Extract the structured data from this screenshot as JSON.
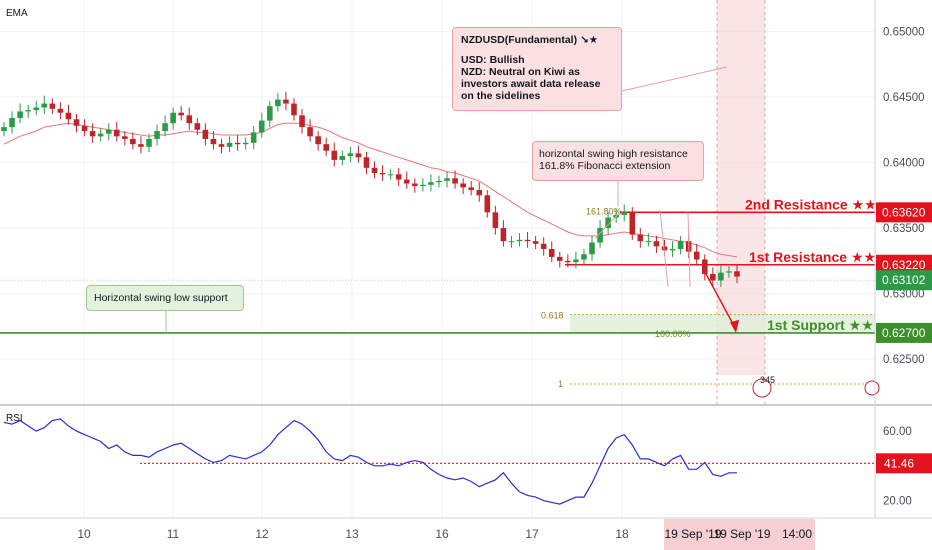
{
  "chart_data": {
    "type": "line",
    "indicator_label": "EMA",
    "rsi_label": "RSI",
    "price_axis": {
      "ticks": [
        "0.65000",
        "0.64500",
        "0.64000",
        "0.63500",
        "0.63000",
        "0.62500"
      ],
      "ylim": [
        0.6215,
        0.6524
      ]
    },
    "rsi_axis": {
      "ticks": [
        "60.00",
        "20.00"
      ],
      "ylim": [
        10,
        75
      ]
    },
    "x_ticks": [
      "10",
      "11",
      "12",
      "13",
      "16",
      "17",
      "18"
    ],
    "x_ticks_highlight": [
      "19 Sep '19",
      "19 Sep '19",
      "14:00"
    ],
    "price_series": [
      0.6427,
      0.6434,
      0.6439,
      0.644,
      0.6442,
      0.6445,
      0.6441,
      0.6438,
      0.6433,
      0.6428,
      0.6424,
      0.642,
      0.6422,
      0.6425,
      0.642,
      0.6418,
      0.6414,
      0.6412,
      0.6418,
      0.6424,
      0.643,
      0.6438,
      0.6436,
      0.643,
      0.6425,
      0.6418,
      0.6414,
      0.6412,
      0.6415,
      0.6414,
      0.6415,
      0.6423,
      0.6432,
      0.6443,
      0.6448,
      0.6445,
      0.6436,
      0.6427,
      0.642,
      0.6414,
      0.6409,
      0.6402,
      0.6405,
      0.6407,
      0.6404,
      0.6396,
      0.6392,
      0.6391,
      0.6391,
      0.6387,
      0.6384,
      0.6382,
      0.6383,
      0.6385,
      0.6386,
      0.6388,
      0.6384,
      0.6381,
      0.6379,
      0.6375,
      0.6362,
      0.635,
      0.634,
      0.634,
      0.6341,
      0.634,
      0.6338,
      0.6334,
      0.6328,
      0.6325,
      0.6324,
      0.6326,
      0.633,
      0.6339,
      0.635,
      0.6358,
      0.636,
      0.6362,
      0.6345,
      0.634,
      0.634,
      0.6336,
      0.6333,
      0.6334,
      0.634,
      0.6332,
      0.6326,
      0.6315,
      0.631,
      0.6316,
      0.6317,
      0.6313
    ],
    "ema_series": [
      0.6414,
      0.6417,
      0.642,
      0.6422,
      0.6424,
      0.6427,
      0.6428,
      0.6429,
      0.643,
      0.6429,
      0.6428,
      0.6427,
      0.6426,
      0.6425,
      0.6424,
      0.6423,
      0.6422,
      0.6421,
      0.642,
      0.6421,
      0.6421,
      0.6422,
      0.6423,
      0.6424,
      0.6423,
      0.6423,
      0.6422,
      0.6421,
      0.6421,
      0.6421,
      0.6421,
      0.6422,
      0.6423,
      0.6426,
      0.6429,
      0.643,
      0.643,
      0.643,
      0.6428,
      0.6427,
      0.6425,
      0.6422,
      0.6419,
      0.6417,
      0.6415,
      0.6412,
      0.641,
      0.6408,
      0.6406,
      0.6404,
      0.6402,
      0.64,
      0.6398,
      0.6396,
      0.6395,
      0.6393,
      0.6392,
      0.639,
      0.6388,
      0.6386,
      0.6382,
      0.6378,
      0.6374,
      0.637,
      0.6366,
      0.6362,
      0.6359,
      0.6356,
      0.6353,
      0.635,
      0.6347,
      0.6345,
      0.6344,
      0.6344,
      0.6344,
      0.6345,
      0.6346,
      0.6347,
      0.6346,
      0.6345,
      0.6344,
      0.6343,
      0.6342,
      0.6341,
      0.634,
      0.6339,
      0.6337,
      0.6335,
      0.6332,
      0.633,
      0.6329,
      0.6328
    ],
    "rsi_series": [
      65,
      64,
      66,
      63,
      60,
      62,
      66,
      67,
      63,
      60,
      58,
      56,
      54,
      50,
      52,
      48,
      46,
      46,
      45,
      48,
      50,
      52,
      53,
      50,
      47,
      44,
      42,
      43,
      46,
      45,
      44,
      46,
      48,
      52,
      58,
      62,
      66,
      64,
      60,
      55,
      48,
      44,
      43,
      46,
      45,
      42,
      40,
      40,
      41,
      40,
      42,
      43,
      42,
      38,
      35,
      33,
      32,
      33,
      31,
      28,
      30,
      32,
      36,
      30,
      25,
      23,
      22,
      20,
      19,
      18,
      20,
      22,
      22,
      30,
      40,
      50,
      56,
      58,
      52,
      44,
      44,
      42,
      40,
      44,
      46,
      38,
      38,
      42,
      35,
      34,
      36,
      36
    ],
    "current_price": "0.63102",
    "current_rsi": "41.46",
    "levels": [
      {
        "name": "2nd Resistance ★★",
        "price": 0.6362,
        "label": "0.63620",
        "color": "#e2131c"
      },
      {
        "name": "1st Resistance ★★",
        "price": 0.6322,
        "label": "0.63220",
        "color": "#e2131c"
      },
      {
        "name": "1st Support ★★",
        "price": 0.627,
        "label": "0.62700",
        "color": "#3d8f2a"
      }
    ],
    "fib_labels": {
      "ext": "161.80%",
      "ret": "0.618",
      "full": "100.00%",
      "one": "1"
    },
    "rsi_level": 41.46,
    "event_badge": "345"
  },
  "annotations": {
    "fundamental_title": "NZDUSD(Fundamental) ↘★",
    "fundamental_usd": "USD: Bullish",
    "fundamental_nzd": "NZD: Neutral on Kiwi as investors await data release on the sidelines",
    "resistance_note_1": "horizontal swing high resistance",
    "resistance_note_2": "161.8% Fibonacci extension",
    "support_note": "Horizontal swing low support"
  },
  "colors": {
    "resistance": "#e2131c",
    "support": "#3d8f2a",
    "candle_up": "#2b9b4a",
    "candle_down": "#c0242b",
    "ema": "#e8777a",
    "rsi": "#2b2bd6"
  }
}
